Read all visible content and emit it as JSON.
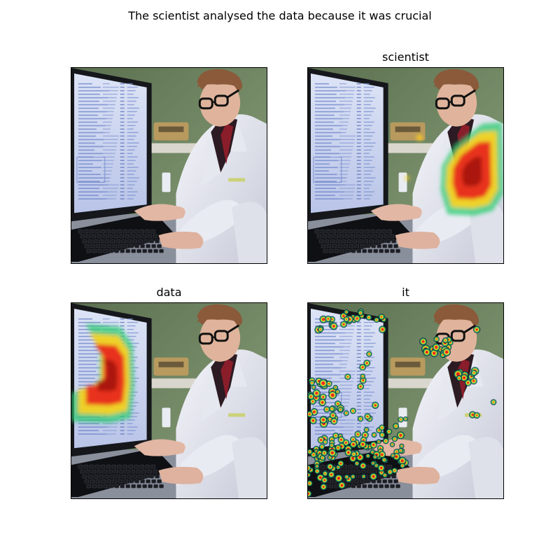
{
  "figure": {
    "title": "The scientist analysed the data because it was crucial"
  },
  "panels": [
    {
      "title": "",
      "overlay": "none"
    },
    {
      "title": "scientist",
      "overlay": "lab-coat-torso"
    },
    {
      "title": "data",
      "overlay": "monitor-screen"
    },
    {
      "title": "it",
      "overlay": "scattered-screen-keyboard-face"
    }
  ],
  "colors": {
    "heat_low": "#2ecc71",
    "heat_mid": "#ffd21a",
    "heat_high": "#e8231a",
    "heat_peak": "#9b0d0a"
  }
}
